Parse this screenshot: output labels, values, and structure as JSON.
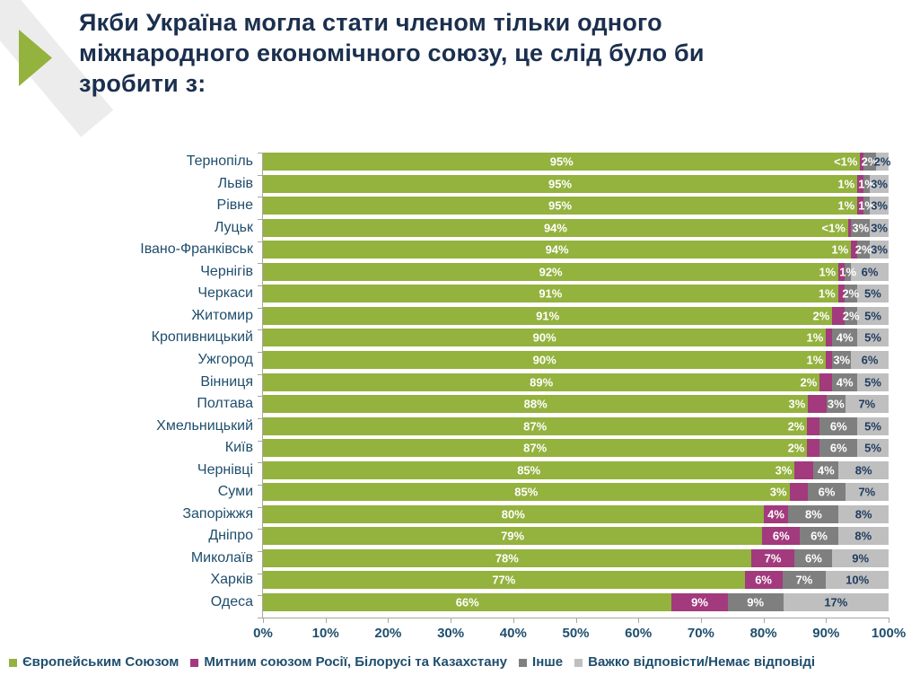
{
  "title": "Якби Україна могла стати членом тільки одного міжнародного економічного союзу, це слід було би зробити з:",
  "colors": {
    "eu_green": "#94b23e",
    "customs_magenta": "#a23a7d",
    "other_dark_gray": "#7f7f7f",
    "dk_light_gray": "#bfbfbf",
    "title_text": "#1b2f4e",
    "label_text": "#1f4e6d",
    "value_on_light": "#1f3c5f",
    "axis_line": "#a6a6a6"
  },
  "legend": [
    {
      "label": "Європейським Союзом",
      "color_key": "eu_green"
    },
    {
      "label": "Митним союзом Росії, Білорусі та Казахстану",
      "color_key": "customs_magenta"
    },
    {
      "label": "Інше",
      "color_key": "other_dark_gray"
    },
    {
      "label": "Важко відповісти/Немає відповіді",
      "color_key": "dk_light_gray"
    }
  ],
  "x_axis_ticks": [
    "0%",
    "10%",
    "20%",
    "30%",
    "40%",
    "50%",
    "60%",
    "70%",
    "80%",
    "90%",
    "100%"
  ],
  "chart_data": {
    "type": "bar",
    "orientation": "horizontal_stacked",
    "title": "Якби Україна могла стати членом тільки одного міжнародного економічного союзу, це слід було би зробити з:",
    "xlabel": "",
    "ylabel": "",
    "xlim": [
      0,
      100
    ],
    "grid": false,
    "legend_position": "bottom",
    "categories": [
      "Тернопіль",
      "Львів",
      "Рівне",
      "Луцьк",
      "Івано-Франківськ",
      "Чернігів",
      "Черкаси",
      "Житомир",
      "Кропивницький",
      "Ужгород",
      "Вінниця",
      "Полтава",
      "Хмельницький",
      "Київ",
      "Чернівці",
      "Суми",
      "Запоріжжя",
      "Дніпро",
      "Миколаїв",
      "Харків",
      "Одеса"
    ],
    "series": [
      {
        "name": "Європейським Союзом",
        "color_key": "eu_green",
        "values": [
          95,
          95,
          95,
          94,
          94,
          92,
          91,
          91,
          90,
          90,
          89,
          88,
          87,
          87,
          85,
          85,
          80,
          79,
          78,
          77,
          66
        ],
        "labels": [
          "95%",
          "95%",
          "95%",
          "94%",
          "94%",
          "92%",
          "91%",
          "91%",
          "90%",
          "90%",
          "89%",
          "88%",
          "87%",
          "87%",
          "85%",
          "85%",
          "80%",
          "79%",
          "78%",
          "77%",
          "66%"
        ]
      },
      {
        "name": "Митним союзом Росії, Білорусі та Казахстану",
        "color_key": "customs_magenta",
        "values": [
          0.5,
          1,
          1,
          0.5,
          1,
          1,
          1,
          2,
          1,
          1,
          2,
          3,
          2,
          2,
          3,
          3,
          4,
          6,
          7,
          6,
          9
        ],
        "labels": [
          "<1%",
          "1%",
          "1%",
          "<1%",
          "1%",
          "1%",
          "1%",
          "2%",
          "1%",
          "1%",
          "2%",
          "3%",
          "2%",
          "2%",
          "3%",
          "3%",
          "4%",
          "6%",
          "7%",
          "6%",
          "9%"
        ]
      },
      {
        "name": "Інше",
        "color_key": "other_dark_gray",
        "values": [
          2,
          1,
          1,
          3,
          2,
          1,
          2,
          2,
          4,
          3,
          4,
          3,
          6,
          6,
          4,
          6,
          8,
          6,
          6,
          7,
          9
        ],
        "labels": [
          "2%",
          "1%",
          "1%",
          "3%",
          "2%",
          "1%",
          "2%",
          "2%",
          "4%",
          "3%",
          "4%",
          "3%",
          "6%",
          "6%",
          "4%",
          "6%",
          "8%",
          "6%",
          "6%",
          "7%",
          "9%"
        ]
      },
      {
        "name": "Важко відповісти/Немає відповіді",
        "color_key": "dk_light_gray",
        "values": [
          2,
          3,
          3,
          3,
          3,
          6,
          5,
          5,
          5,
          6,
          5,
          7,
          5,
          5,
          8,
          7,
          8,
          8,
          9,
          10,
          17
        ],
        "labels": [
          "2%",
          "3%",
          "3%",
          "3%",
          "3%",
          "6%",
          "5%",
          "5%",
          "5%",
          "6%",
          "5%",
          "7%",
          "5%",
          "5%",
          "8%",
          "7%",
          "8%",
          "8%",
          "9%",
          "10%",
          "17%"
        ]
      }
    ]
  }
}
